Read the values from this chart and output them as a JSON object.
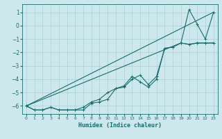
{
  "xlabel": "Humidex (Indice chaleur)",
  "bg_color": "#cce8ed",
  "grid_color": "#b0d4da",
  "line_color": "#1a6b6b",
  "xlim": [
    -0.5,
    23.5
  ],
  "ylim": [
    -6.6,
    1.6
  ],
  "xticks": [
    0,
    1,
    2,
    3,
    4,
    5,
    6,
    7,
    8,
    9,
    10,
    11,
    12,
    13,
    14,
    15,
    16,
    17,
    18,
    19,
    20,
    21,
    22,
    23
  ],
  "yticks": [
    -6,
    -5,
    -4,
    -3,
    -2,
    -1,
    0,
    1
  ],
  "line1_x": [
    0,
    1,
    2,
    3,
    4,
    5,
    6,
    7,
    8,
    9,
    10,
    11,
    12,
    13,
    14,
    15,
    16,
    17,
    18,
    19,
    20,
    21,
    22,
    23
  ],
  "line1_y": [
    -6.0,
    -6.3,
    -6.3,
    -6.1,
    -6.3,
    -6.3,
    -6.3,
    -6.3,
    -5.8,
    -5.7,
    -5.5,
    -4.7,
    -4.5,
    -3.8,
    -4.2,
    -4.6,
    -4.0,
    -1.7,
    -1.6,
    -1.3,
    -1.4,
    -1.3,
    -1.3,
    -1.3
  ],
  "line2_x": [
    0,
    1,
    2,
    3,
    4,
    5,
    6,
    7,
    8,
    9,
    10,
    11,
    12,
    13,
    14,
    15,
    16,
    17,
    18,
    19,
    20,
    21,
    22,
    23
  ],
  "line2_y": [
    -6.0,
    -6.3,
    -6.3,
    -6.1,
    -6.3,
    -6.3,
    -6.3,
    -6.1,
    -5.7,
    -5.5,
    -5.0,
    -4.7,
    -4.6,
    -4.0,
    -3.7,
    -4.4,
    -3.8,
    -1.7,
    -1.6,
    -1.3,
    -1.4,
    -1.3,
    -1.3,
    -1.3
  ],
  "line3_x": [
    0,
    23
  ],
  "line3_y": [
    -6.0,
    1.0
  ],
  "line3b_x": [
    0,
    19,
    20,
    21,
    22,
    23
  ],
  "line3b_y": [
    -6.0,
    -1.3,
    1.2,
    0.1,
    -1.0,
    1.0
  ]
}
